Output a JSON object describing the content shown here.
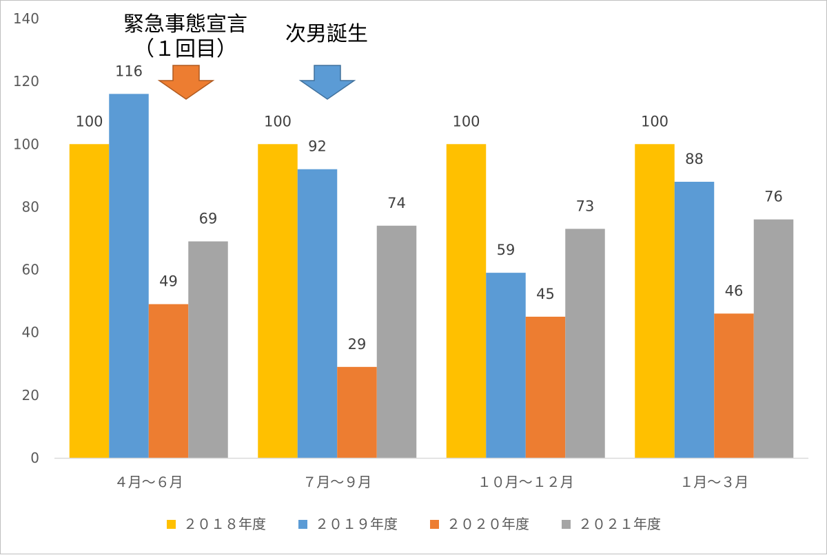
{
  "chart_data": {
    "type": "bar",
    "categories": [
      "４月～６月",
      "７月～９月",
      "１０月～１２月",
      "１月～３月"
    ],
    "series": [
      {
        "name": "２０１８年度",
        "color": "#FFC000",
        "values": [
          100,
          100,
          100,
          100
        ]
      },
      {
        "name": "２０１９年度",
        "color": "#5B9BD5",
        "values": [
          116,
          92,
          59,
          88
        ]
      },
      {
        "name": "２０２０年度",
        "color": "#ED7D31",
        "values": [
          49,
          29,
          45,
          46
        ]
      },
      {
        "name": "２０２１年度",
        "color": "#A5A5A5",
        "values": [
          69,
          74,
          73,
          76
        ]
      }
    ],
    "ylim": [
      0,
      140
    ],
    "yticks": [
      0,
      20,
      40,
      60,
      80,
      100,
      120,
      140
    ],
    "legend_position": "bottom",
    "grid": false,
    "annotations": [
      {
        "text_line1": "緊急事態宣言",
        "text_line2": "（１回目）",
        "arrow_color": "#ED7D31",
        "arrow_icon": "down-arrow-icon",
        "category_index": 0
      },
      {
        "text_line1": "次男誕生",
        "arrow_color": "#5B9BD5",
        "arrow_icon": "down-arrow-icon",
        "category_index": 1
      }
    ]
  }
}
